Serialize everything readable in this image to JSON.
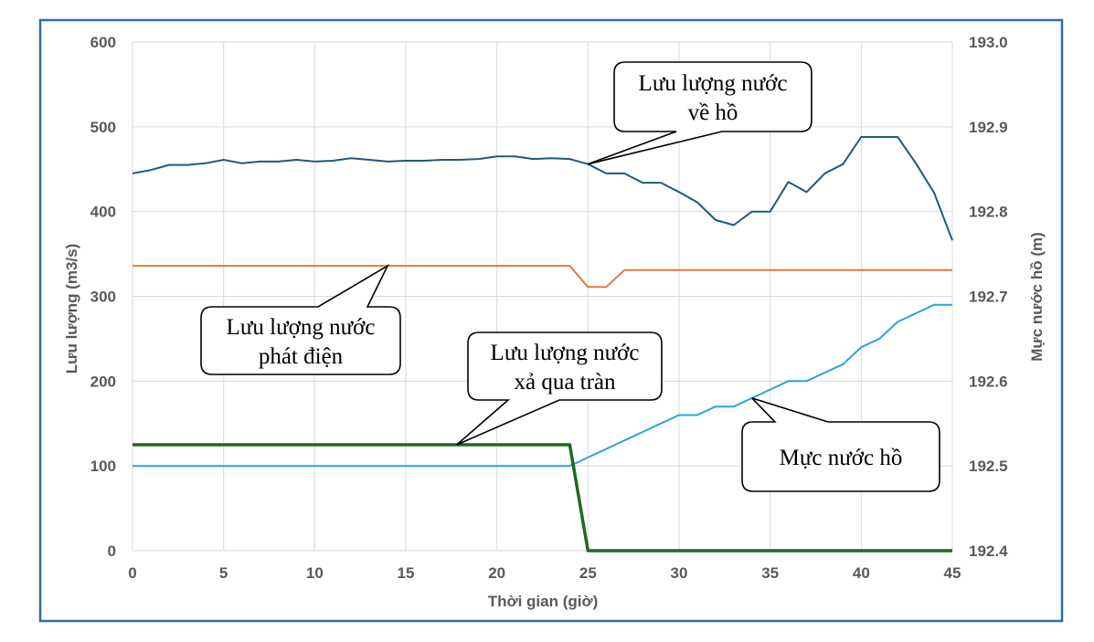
{
  "chart_data": {
    "type": "line",
    "x": [
      0,
      1,
      2,
      3,
      4,
      5,
      6,
      7,
      8,
      9,
      10,
      11,
      12,
      13,
      14,
      15,
      16,
      17,
      18,
      19,
      20,
      21,
      22,
      23,
      24,
      25,
      26,
      27,
      28,
      29,
      30,
      31,
      32,
      33,
      34,
      35,
      36,
      37,
      38,
      39,
      40,
      41,
      42,
      43,
      44,
      45
    ],
    "xlabel": "Thời gian (giờ)",
    "ylabel": "Lưu lượng (m3/s)",
    "y2label": "Mực nước hồ (m)",
    "xlim": [
      0,
      45
    ],
    "ylim": [
      0,
      600
    ],
    "y2lim": [
      192.4,
      193.0
    ],
    "xticks": [
      "0",
      "5",
      "10",
      "15",
      "20",
      "25",
      "30",
      "35",
      "40",
      "45"
    ],
    "yticks": [
      "0",
      "100",
      "200",
      "300",
      "400",
      "500",
      "600"
    ],
    "y2ticks": [
      "192.4",
      "192.5",
      "192.6",
      "192.7",
      "192.8",
      "192.9",
      "193.0"
    ],
    "grid": true,
    "colors": {
      "inflow": "#1f5a7a",
      "power": "#e07a3e",
      "spill": "#1e6b1e",
      "level": "#2aa3d6",
      "grid": "#d9d9d9",
      "frame": "#2e6da4"
    },
    "series": [
      {
        "key": "inflow",
        "axis": "left",
        "values": [
          445,
          449,
          455,
          455,
          457,
          461,
          457,
          459,
          459,
          461,
          459,
          460,
          463,
          461,
          459,
          460,
          460,
          461,
          461,
          462,
          465,
          465,
          462,
          463,
          462,
          456,
          445,
          445,
          434,
          434,
          423,
          411,
          390,
          384,
          400,
          400,
          435,
          423,
          445,
          456,
          488,
          488,
          488,
          457,
          422,
          366
        ]
      },
      {
        "key": "power",
        "axis": "left",
        "values": [
          336,
          336,
          336,
          336,
          336,
          336,
          336,
          336,
          336,
          336,
          336,
          336,
          336,
          336,
          336,
          336,
          336,
          336,
          336,
          336,
          336,
          336,
          336,
          336,
          336,
          311,
          311,
          331,
          331,
          331,
          331,
          331,
          331,
          331,
          331,
          331,
          331,
          331,
          331,
          331,
          331,
          331,
          331,
          331,
          331,
          331
        ]
      },
      {
        "key": "spill",
        "axis": "left",
        "values": [
          125,
          125,
          125,
          125,
          125,
          125,
          125,
          125,
          125,
          125,
          125,
          125,
          125,
          125,
          125,
          125,
          125,
          125,
          125,
          125,
          125,
          125,
          125,
          125,
          125,
          0,
          0,
          0,
          0,
          0,
          0,
          0,
          0,
          0,
          0,
          0,
          0,
          0,
          0,
          0,
          0,
          0,
          0,
          0,
          0,
          0
        ]
      },
      {
        "key": "level",
        "axis": "right",
        "values": [
          192.5,
          192.5,
          192.5,
          192.5,
          192.5,
          192.5,
          192.5,
          192.5,
          192.5,
          192.5,
          192.5,
          192.5,
          192.5,
          192.5,
          192.5,
          192.5,
          192.5,
          192.5,
          192.5,
          192.5,
          192.5,
          192.5,
          192.5,
          192.5,
          192.5,
          192.51,
          192.52,
          192.53,
          192.54,
          192.55,
          192.56,
          192.56,
          192.57,
          192.57,
          192.58,
          192.59,
          192.6,
          192.6,
          192.61,
          192.62,
          192.64,
          192.65,
          192.67,
          192.68,
          192.69,
          192.69
        ]
      }
    ],
    "annotations": [
      {
        "key": "inflow",
        "lines": [
          "Lưu lượng nước",
          "về hồ"
        ],
        "target": [
          25,
          456
        ]
      },
      {
        "key": "power",
        "lines": [
          "Lưu lượng nước",
          "phát điện"
        ],
        "target": [
          14,
          336
        ]
      },
      {
        "key": "spill",
        "lines": [
          "Lưu lượng nước",
          "xả qua tràn"
        ],
        "target": [
          17.8,
          125
        ]
      },
      {
        "key": "level",
        "lines": [
          "Mực nước hồ"
        ],
        "target": [
          34,
          192.58
        ],
        "axis": "right"
      }
    ]
  }
}
